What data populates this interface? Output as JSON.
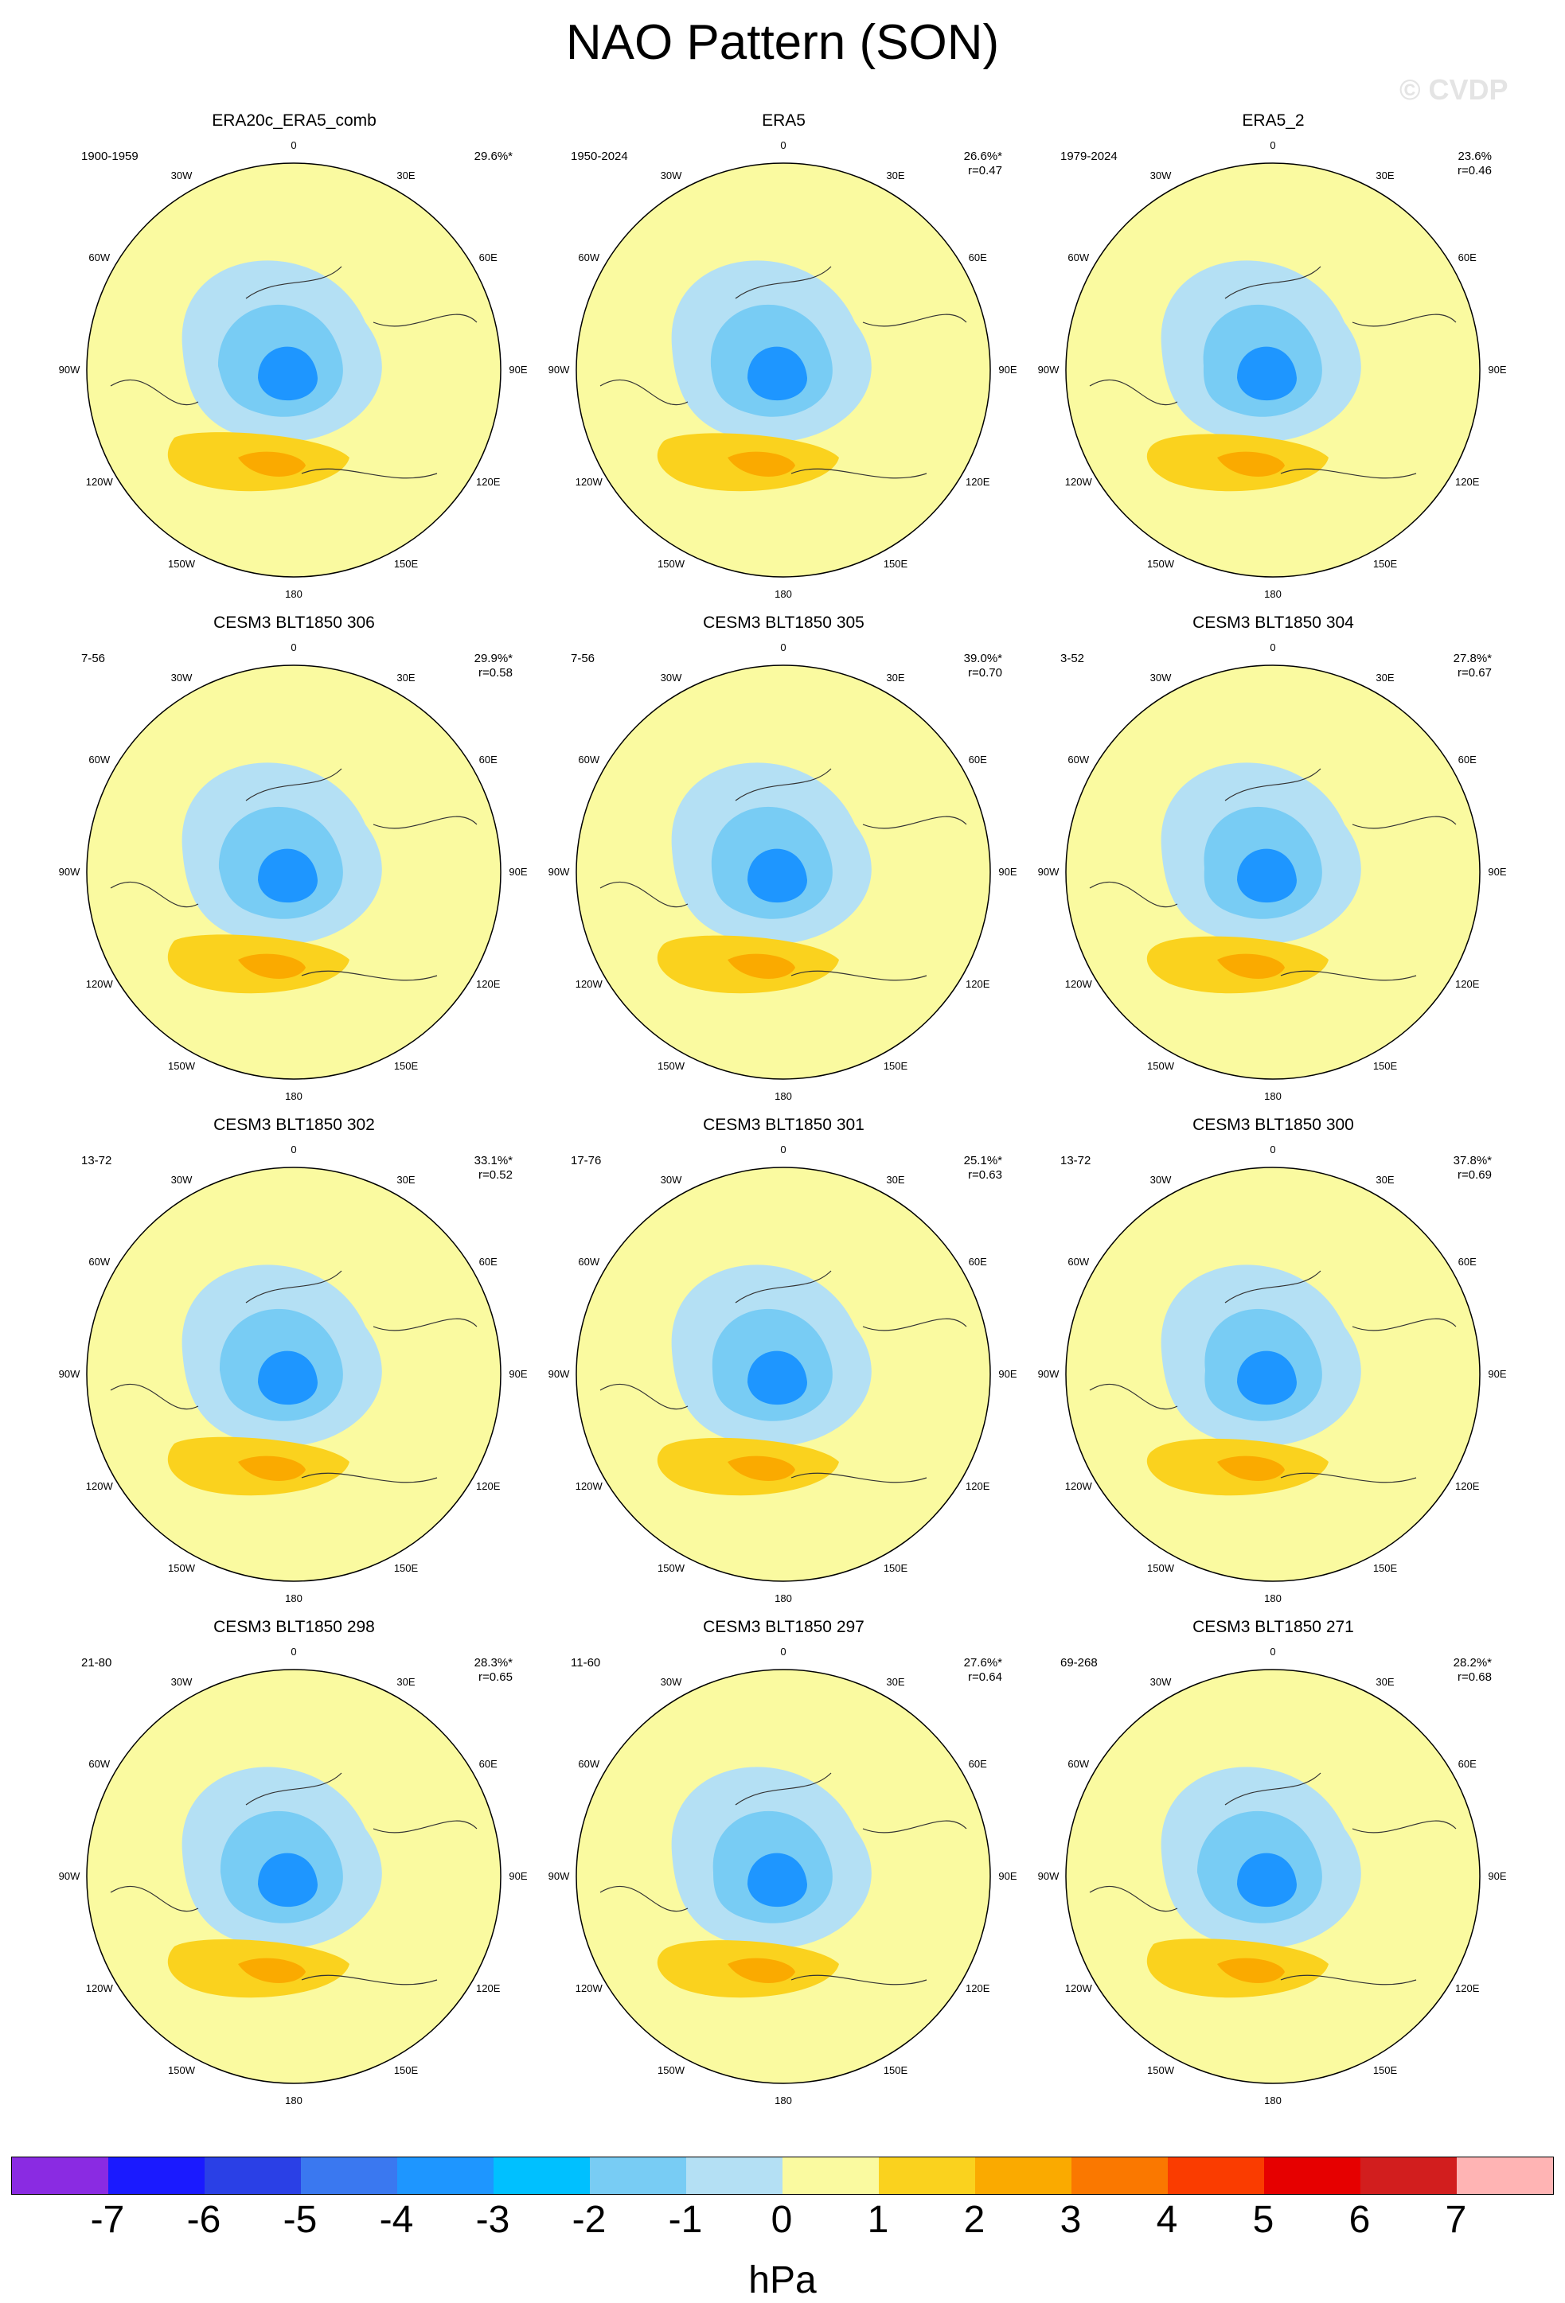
{
  "title": "NAO Pattern (SON)",
  "watermark": "© CVDP",
  "longitude_labels": [
    "180",
    "150E",
    "120E",
    "90E",
    "60E",
    "30E",
    "0",
    "30W",
    "60W",
    "90W",
    "120W",
    "150W"
  ],
  "colorbar": {
    "units": "hPa",
    "ticks": [
      "-7",
      "-6",
      "-5",
      "-4",
      "-3",
      "-2",
      "-1",
      "0",
      "1",
      "2",
      "3",
      "4",
      "5",
      "6",
      "7"
    ],
    "colors": [
      "#8a2be2",
      "#1a1aff",
      "#2a40e6",
      "#3a78f0",
      "#1e96ff",
      "#00c0ff",
      "#78ccf4",
      "#b4e0f4",
      "#fafaa0",
      "#fad21e",
      "#faaa00",
      "#fa7800",
      "#fa3c00",
      "#e60000",
      "#d21e1e",
      "#ffb4b4"
    ]
  },
  "panels": [
    {
      "title": "ERA20c_ERA5_comb",
      "years": "1900-1959",
      "pct": "29.6%*",
      "r": ""
    },
    {
      "title": "ERA5",
      "years": "1950-2024",
      "pct": "26.6%*",
      "r": "r=0.47"
    },
    {
      "title": "ERA5_2",
      "years": "1979-2024",
      "pct": "23.6%",
      "r": "r=0.46"
    },
    {
      "title": "CESM3 BLT1850 306",
      "years": "7-56",
      "pct": "29.9%*",
      "r": "r=0.58"
    },
    {
      "title": "CESM3 BLT1850 305",
      "years": "7-56",
      "pct": "39.0%*",
      "r": "r=0.70"
    },
    {
      "title": "CESM3 BLT1850 304",
      "years": "3-52",
      "pct": "27.8%*",
      "r": "r=0.67"
    },
    {
      "title": "CESM3 BLT1850 302",
      "years": "13-72",
      "pct": "33.1%*",
      "r": "r=0.52"
    },
    {
      "title": "CESM3 BLT1850 301",
      "years": "17-76",
      "pct": "25.1%*",
      "r": "r=0.63"
    },
    {
      "title": "CESM3 BLT1850 300",
      "years": "13-72",
      "pct": "37.8%*",
      "r": "r=0.69"
    },
    {
      "title": "CESM3 BLT1850 298",
      "years": "21-80",
      "pct": "28.3%*",
      "r": "r=0.65"
    },
    {
      "title": "CESM3 BLT1850 297",
      "years": "11-60",
      "pct": "27.6%*",
      "r": "r=0.64"
    },
    {
      "title": "CESM3 BLT1850 271",
      "years": "69-268",
      "pct": "28.2%*",
      "r": "r=0.68"
    }
  ]
}
